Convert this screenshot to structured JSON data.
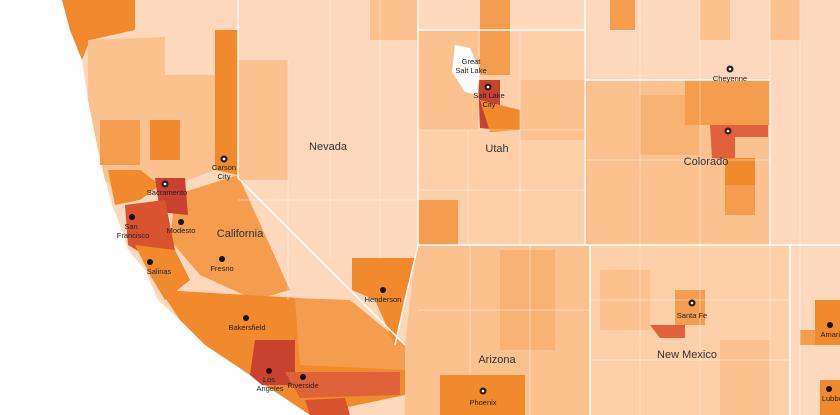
{
  "map": {
    "states": [
      "Nevada",
      "Utah",
      "Colorado",
      "California",
      "Arizona",
      "New Mexico"
    ],
    "features": [
      "Great",
      "Salt Lake"
    ],
    "cities": [
      "Cheyenne",
      "Salt Lake",
      "City",
      "Carson",
      "City",
      "Sacramento",
      "San",
      "Francisco",
      "Modesto",
      "Fresno",
      "Salinas",
      "Bakersfield",
      "Henderson",
      "Los",
      "Angeles",
      "Riverside",
      "Santa Fe",
      "Phoenix",
      "Amarillo",
      "Lubbock"
    ]
  }
}
